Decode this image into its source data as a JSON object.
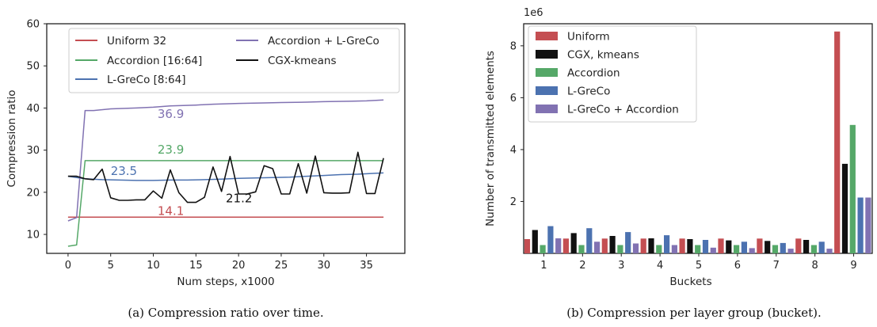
{
  "colors": {
    "uniform": "#c44e52",
    "accordion": "#55a868",
    "lgreco": "#4c72b0",
    "acc_lgreco": "#8172b2",
    "cgx": "#111111"
  },
  "chart_data": [
    {
      "type": "line",
      "caption": "(a) Compression ratio over time.",
      "xlabel": "Num steps, x1000",
      "ylabel": "Compression ratio",
      "xlim": [
        -2.5,
        39.5
      ],
      "ylim": [
        5.5,
        60
      ],
      "xticks": [
        0,
        5,
        10,
        15,
        20,
        25,
        30,
        35
      ],
      "yticks": [
        10,
        20,
        30,
        40,
        50,
        60
      ],
      "grid": false,
      "legend": "top",
      "series": [
        {
          "name": "Uniform 32",
          "color": "uniform",
          "x": [
            0,
            1,
            37
          ],
          "y": [
            14.1,
            14.1,
            14.1
          ]
        },
        {
          "name": "Accordion [16:64]",
          "color": "accordion",
          "x": [
            0,
            1,
            2,
            37
          ],
          "y": [
            7.2,
            7.5,
            27.5,
            27.5
          ]
        },
        {
          "name": "L-GreCo [8:64]",
          "color": "lgreco",
          "x": [
            0,
            1,
            2,
            4,
            6,
            8,
            10,
            12,
            14,
            16,
            18,
            20,
            22,
            24,
            26,
            28,
            30,
            32,
            34,
            36,
            37
          ],
          "y": [
            23.8,
            23.5,
            23.2,
            23.0,
            22.9,
            22.8,
            22.8,
            22.9,
            22.9,
            23.0,
            23.1,
            23.3,
            23.4,
            23.5,
            23.6,
            23.8,
            24.0,
            24.2,
            24.3,
            24.5,
            24.6
          ]
        },
        {
          "name": "Accordion + L-GreCo",
          "color": "acc_lgreco",
          "x": [
            0,
            1,
            2,
            3,
            5,
            8,
            10,
            12,
            15,
            17,
            20,
            23,
            25,
            28,
            30,
            33,
            35,
            37
          ],
          "y": [
            13.2,
            14.0,
            39.4,
            39.4,
            39.8,
            40.0,
            40.2,
            40.5,
            40.7,
            40.9,
            41.1,
            41.2,
            41.3,
            41.4,
            41.5,
            41.6,
            41.7,
            41.9
          ]
        },
        {
          "name": "CGX-kmeans",
          "color": "cgx",
          "x": [
            0,
            1,
            2,
            3,
            4,
            5,
            6,
            7,
            8,
            9,
            10,
            11,
            12,
            13,
            14,
            15,
            16,
            17,
            18,
            19,
            20,
            21,
            22,
            23,
            24,
            25,
            26,
            27,
            28,
            29,
            30,
            31,
            32,
            33,
            34,
            35,
            36,
            37
          ],
          "y": [
            23.8,
            23.8,
            23.2,
            23.0,
            25.5,
            18.7,
            18.1,
            18.1,
            18.2,
            18.2,
            20.3,
            18.6,
            25.3,
            19.9,
            17.6,
            17.6,
            18.8,
            26.0,
            20.2,
            28.5,
            19.6,
            19.6,
            20.1,
            26.3,
            25.6,
            19.6,
            19.6,
            26.8,
            19.8,
            28.6,
            19.9,
            19.8,
            19.8,
            19.9,
            29.5,
            19.7,
            19.7,
            28.1
          ]
        }
      ],
      "annotations": [
        {
          "text": "36.9",
          "x": 10.5,
          "y": 37.6,
          "color": "acc_lgreco"
        },
        {
          "text": "23.9",
          "x": 10.5,
          "y": 29.2,
          "color": "accordion"
        },
        {
          "text": "23.5",
          "x": 5.0,
          "y": 24.1,
          "color": "lgreco"
        },
        {
          "text": "14.1",
          "x": 10.5,
          "y": 14.6,
          "color": "uniform"
        },
        {
          "text": "21.2",
          "x": 18.5,
          "y": 17.6,
          "color": "cgx"
        }
      ]
    },
    {
      "type": "bar",
      "caption": "(b) Compression per layer group (bucket).",
      "xlabel": "Buckets",
      "ylabel": "Number of transmitted elements",
      "offset_label": "1e6",
      "ylim": [
        0,
        8.85
      ],
      "yticks": [
        2,
        4,
        6,
        8
      ],
      "categories": [
        "1",
        "2",
        "3",
        "4",
        "5",
        "6",
        "7",
        "8",
        "9"
      ],
      "grid": false,
      "legend": "top-left",
      "series": [
        {
          "name": "Uniform",
          "color": "uniform",
          "values": [
            0.55,
            0.57,
            0.57,
            0.57,
            0.57,
            0.57,
            0.57,
            0.57,
            8.55
          ]
        },
        {
          "name": "CGX, kmeans",
          "color": "cgx",
          "values": [
            0.9,
            0.78,
            0.67,
            0.58,
            0.55,
            0.5,
            0.48,
            0.52,
            3.45
          ]
        },
        {
          "name": "Accordion",
          "color": "accordion",
          "values": [
            0.32,
            0.32,
            0.32,
            0.32,
            0.32,
            0.32,
            0.32,
            0.32,
            4.95
          ]
        },
        {
          "name": "L-GreCo",
          "color": "lgreco",
          "values": [
            1.05,
            0.97,
            0.82,
            0.7,
            0.52,
            0.45,
            0.4,
            0.45,
            2.15
          ]
        },
        {
          "name": "L-GreCo + Accordion",
          "color": "acc_lgreco",
          "values": [
            0.58,
            0.45,
            0.38,
            0.32,
            0.22,
            0.2,
            0.18,
            0.18,
            2.15
          ]
        }
      ]
    }
  ]
}
